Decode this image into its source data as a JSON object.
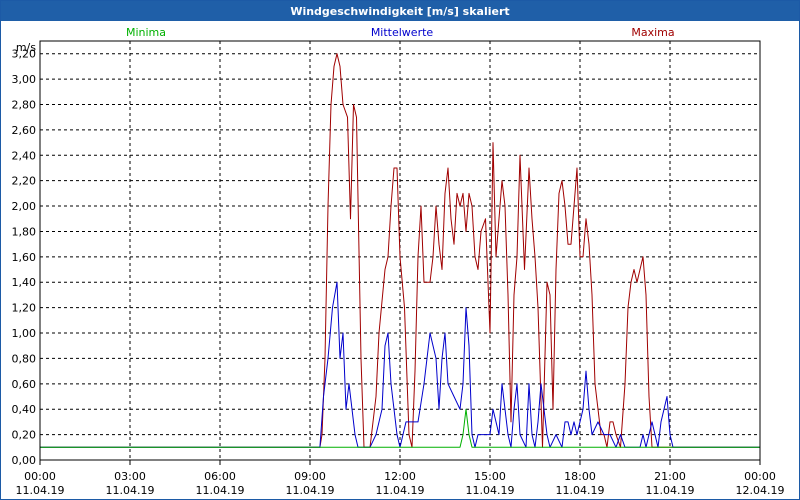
{
  "window": {
    "title": "Windgeschwindigkeit [m/s] skaliert"
  },
  "legend": {
    "min_label": "Minima",
    "mean_label": "Mittelwerte",
    "max_label": "Maxima"
  },
  "colors": {
    "min": "#00b000",
    "mean": "#0000cc",
    "max": "#a00000",
    "grid": "#000000"
  },
  "chart_data": {
    "type": "line",
    "title": "Windgeschwindigkeit [m/s] skaliert",
    "ylabel": "m/s",
    "xlabel": "",
    "ylim": [
      0,
      3.3
    ],
    "y_ticks": [
      "0,00",
      "0,20",
      "0,40",
      "0,60",
      "0,80",
      "1,00",
      "1,20",
      "1,40",
      "1,60",
      "1,80",
      "2,00",
      "2,20",
      "2,40",
      "2,60",
      "2,80",
      "3,00",
      "3,20"
    ],
    "x_ticks": [
      {
        "time": "00:00",
        "date": "11.04.19"
      },
      {
        "time": "03:00",
        "date": "11.04.19"
      },
      {
        "time": "06:00",
        "date": "11.04.19"
      },
      {
        "time": "09:00",
        "date": "11.04.19"
      },
      {
        "time": "12:00",
        "date": "11.04.19"
      },
      {
        "time": "15:00",
        "date": "11.04.19"
      },
      {
        "time": "18:00",
        "date": "11.04.19"
      },
      {
        "time": "21:00",
        "date": "11.04.19"
      },
      {
        "time": "00:00",
        "date": "12.04.19"
      }
    ],
    "xlim_hours": [
      0,
      24
    ],
    "grid": true,
    "series": [
      {
        "name": "Maxima",
        "x": [
          0,
          9.33,
          9.4,
          9.5,
          9.6,
          9.7,
          9.8,
          9.9,
          10.0,
          10.1,
          10.25,
          10.35,
          10.45,
          10.55,
          10.7,
          10.8,
          11.0,
          11.2,
          11.3,
          11.5,
          11.6,
          11.7,
          11.8,
          11.9,
          12.0,
          12.15,
          12.3,
          12.4,
          12.5,
          12.6,
          12.7,
          12.8,
          13.0,
          13.1,
          13.2,
          13.3,
          13.4,
          13.5,
          13.6,
          13.7,
          13.8,
          13.9,
          14.0,
          14.1,
          14.2,
          14.3,
          14.4,
          14.5,
          14.6,
          14.7,
          14.85,
          15.0,
          15.1,
          15.2,
          15.4,
          15.5,
          15.6,
          15.7,
          15.8,
          15.9,
          16.0,
          16.15,
          16.3,
          16.4,
          16.5,
          16.6,
          16.75,
          16.9,
          17.0,
          17.1,
          17.2,
          17.3,
          17.4,
          17.5,
          17.6,
          17.7,
          17.8,
          17.9,
          18.0,
          18.1,
          18.2,
          18.3,
          18.4,
          18.5,
          18.6,
          18.7,
          18.8,
          18.9,
          19.0,
          19.1,
          19.2,
          19.35,
          19.5,
          19.6,
          19.7,
          19.8,
          19.9,
          20.0,
          20.1,
          20.2,
          20.3,
          20.4,
          20.5,
          20.6,
          20.7,
          20.8,
          20.9,
          21.0,
          21.1,
          24
        ],
        "values": [
          0.1,
          0.1,
          0.2,
          0.8,
          2.0,
          2.8,
          3.1,
          3.2,
          3.1,
          2.8,
          2.7,
          1.9,
          2.8,
          2.7,
          0.8,
          0.1,
          0.1,
          0.5,
          1.0,
          1.5,
          1.6,
          2.0,
          2.3,
          2.3,
          1.6,
          1.2,
          0.2,
          0.1,
          0.7,
          1.6,
          2.0,
          1.4,
          1.4,
          1.6,
          2.0,
          1.7,
          1.5,
          2.1,
          2.3,
          1.9,
          1.7,
          2.1,
          2.0,
          2.1,
          1.8,
          2.1,
          2.0,
          1.6,
          1.5,
          1.8,
          1.9,
          1.0,
          2.5,
          1.6,
          2.2,
          2.0,
          1.3,
          0.3,
          1.3,
          1.6,
          2.4,
          1.5,
          2.3,
          1.9,
          1.6,
          1.2,
          0.1,
          1.4,
          1.3,
          0.4,
          1.5,
          2.1,
          2.2,
          2.0,
          1.7,
          1.7,
          2.0,
          2.3,
          1.6,
          1.6,
          1.9,
          1.7,
          1.3,
          0.6,
          0.4,
          0.2,
          0.2,
          0.1,
          0.3,
          0.3,
          0.2,
          0.1,
          0.6,
          1.2,
          1.4,
          1.5,
          1.4,
          1.5,
          1.6,
          1.3,
          0.5,
          0.1,
          0.1,
          0.1,
          0.1,
          0.1,
          0.1,
          0.1,
          0.1,
          0.1
        ],
        "color": "#a00000"
      },
      {
        "name": "Mittelwerte",
        "x": [
          0,
          9.33,
          9.45,
          9.6,
          9.75,
          9.9,
          10.0,
          10.1,
          10.2,
          10.3,
          10.4,
          10.5,
          10.6,
          10.8,
          11.0,
          11.2,
          11.4,
          11.5,
          11.6,
          11.7,
          11.8,
          11.9,
          12.0,
          12.2,
          12.4,
          12.6,
          12.8,
          13.0,
          13.2,
          13.3,
          13.4,
          13.5,
          13.6,
          13.8,
          14.0,
          14.1,
          14.2,
          14.3,
          14.4,
          14.5,
          14.6,
          14.8,
          15.0,
          15.1,
          15.2,
          15.3,
          15.4,
          15.5,
          15.6,
          15.7,
          15.8,
          15.9,
          16.0,
          16.2,
          16.3,
          16.4,
          16.5,
          16.6,
          16.7,
          16.8,
          16.9,
          17.0,
          17.2,
          17.4,
          17.5,
          17.6,
          17.7,
          17.8,
          17.9,
          18.0,
          18.1,
          18.2,
          18.3,
          18.4,
          18.6,
          18.8,
          19.0,
          19.2,
          19.35,
          19.5,
          19.7,
          19.9,
          20.0,
          20.1,
          20.2,
          20.3,
          20.4,
          20.5,
          20.6,
          20.7,
          20.8,
          20.9,
          21.0,
          21.1,
          24
        ],
        "values": [
          0.1,
          0.1,
          0.5,
          0.8,
          1.2,
          1.4,
          0.8,
          1.0,
          0.4,
          0.6,
          0.4,
          0.2,
          0.1,
          0.1,
          0.1,
          0.2,
          0.4,
          0.9,
          1.0,
          0.6,
          0.4,
          0.2,
          0.1,
          0.3,
          0.3,
          0.3,
          0.6,
          1.0,
          0.8,
          0.4,
          0.8,
          1.0,
          0.6,
          0.5,
          0.4,
          0.6,
          1.2,
          0.9,
          0.2,
          0.1,
          0.2,
          0.2,
          0.2,
          0.4,
          0.3,
          0.2,
          0.6,
          0.4,
          0.2,
          0.1,
          0.4,
          0.6,
          0.2,
          0.1,
          0.6,
          0.2,
          0.1,
          0.3,
          0.6,
          0.4,
          0.2,
          0.1,
          0.2,
          0.1,
          0.3,
          0.3,
          0.2,
          0.3,
          0.2,
          0.3,
          0.4,
          0.7,
          0.4,
          0.2,
          0.3,
          0.2,
          0.2,
          0.1,
          0.2,
          0.1,
          0.1,
          0.1,
          0.1,
          0.2,
          0.1,
          0.2,
          0.3,
          0.2,
          0.1,
          0.3,
          0.4,
          0.5,
          0.2,
          0.1,
          0.1
        ],
        "color": "#0000cc"
      },
      {
        "name": "Minima",
        "x": [
          0,
          9.33,
          14.0,
          14.1,
          14.2,
          14.3,
          14.4,
          21.1,
          24
        ],
        "values": [
          0.1,
          0.1,
          0.1,
          0.2,
          0.4,
          0.2,
          0.1,
          0.1,
          0.1
        ],
        "color": "#00b000"
      }
    ]
  }
}
